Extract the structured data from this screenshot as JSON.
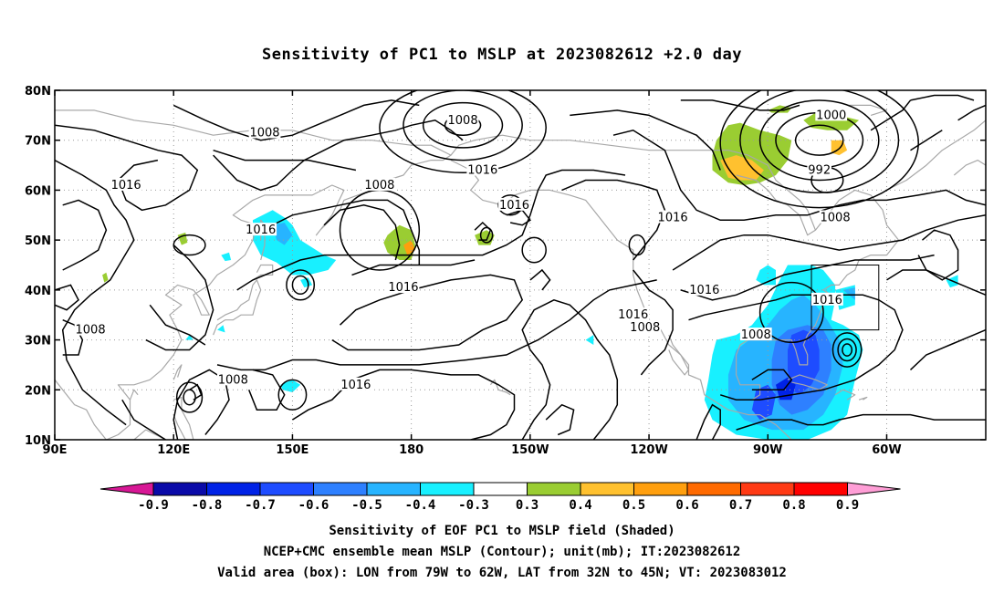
{
  "title": "Sensitivity of PC1 to MSLP at 2023082612 +2.0 day",
  "lon_ticks": [
    "90E",
    "120E",
    "150E",
    "180",
    "150W",
    "120W",
    "90W",
    "60W"
  ],
  "lat_ticks": [
    "80N",
    "70N",
    "60N",
    "50N",
    "40N",
    "30N",
    "20N",
    "10N"
  ],
  "contour_labels": [
    {
      "text": "1008",
      "lon": 143,
      "lat": 71.5
    },
    {
      "text": "1008",
      "lon": 193,
      "lat": 74
    },
    {
      "text": "1000",
      "lon": 286,
      "lat": 75
    },
    {
      "text": "992",
      "lon": 283,
      "lat": 64
    },
    {
      "text": "1016",
      "lon": 108,
      "lat": 61
    },
    {
      "text": "1016",
      "lon": 142,
      "lat": 52
    },
    {
      "text": "1008",
      "lon": 172,
      "lat": 61
    },
    {
      "text": "1016",
      "lon": 198,
      "lat": 64
    },
    {
      "text": "1016",
      "lon": 206,
      "lat": 57
    },
    {
      "text": "1016",
      "lon": 246,
      "lat": 54.5
    },
    {
      "text": "1008",
      "lon": 287,
      "lat": 54.5
    },
    {
      "text": "1016",
      "lon": 178,
      "lat": 40.5
    },
    {
      "text": "1016",
      "lon": 254,
      "lat": 40
    },
    {
      "text": "1016",
      "lon": 285,
      "lat": 38
    },
    {
      "text": "1016",
      "lon": 236,
      "lat": 35
    },
    {
      "text": "1008",
      "lon": 239,
      "lat": 32.5
    },
    {
      "text": "1008",
      "lon": 99,
      "lat": 32
    },
    {
      "text": "1008",
      "lon": 267,
      "lat": 31
    },
    {
      "text": "1008",
      "lon": 135,
      "lat": 22
    },
    {
      "text": "1016",
      "lon": 166,
      "lat": 21
    }
  ],
  "colorbar": {
    "labels": [
      "-0.9",
      "-0.8",
      "-0.7",
      "-0.6",
      "-0.5",
      "-0.4",
      "-0.3",
      "0.3",
      "0.4",
      "0.5",
      "0.6",
      "0.7",
      "0.8",
      "0.9"
    ],
    "colors": [
      "#0a0aa8",
      "#0022e6",
      "#1e4cff",
      "#2e80ff",
      "#27b4ff",
      "#18f0ff",
      "#ffffff",
      "#9acd32",
      "#ffc12f",
      "#ff9f0e",
      "#ff6a00",
      "#ff3a14",
      "#ff0000"
    ],
    "low_end_color": "#d71795",
    "high_end_color": "#ff9ed6"
  },
  "captions": [
    "Sensitivity of EOF PC1 to MSLP field (Shaded)",
    "NCEP+CMC ensemble mean MSLP (Contour); unit(mb); IT:2023082612",
    "Valid area (box): LON from 79W to 62W, LAT from 32N to 45N; VT: 2023083012"
  ],
  "map": {
    "lon_range": [
      "90E",
      "35W"
    ],
    "lat_range": [
      "10N",
      "80N"
    ],
    "valid_box": {
      "lon_west": "79W",
      "lon_east": "62W",
      "lat_south": "32N",
      "lat_north": "45N"
    },
    "contour_color": "#000000",
    "coast_color": "#a8a8a8",
    "grid": "dotted"
  }
}
